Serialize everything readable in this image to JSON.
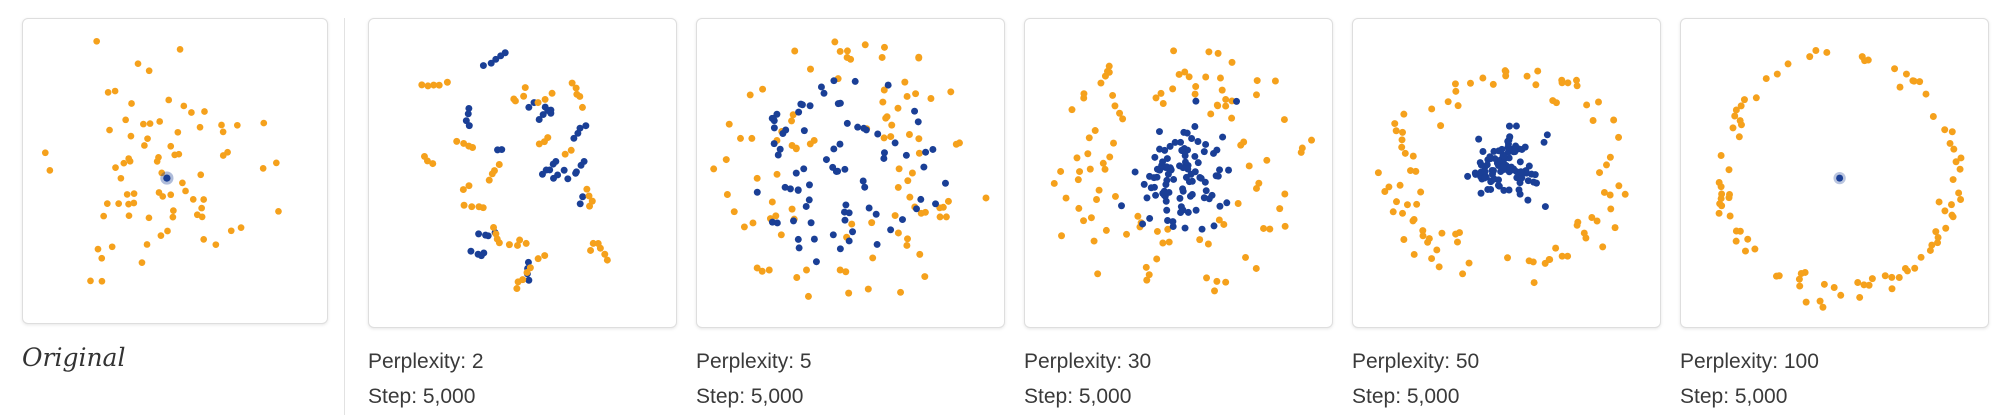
{
  "colors": {
    "outer": "#f5a11c",
    "inner": "#1a3f96",
    "card_border": "#dedede"
  },
  "original": {
    "label": "Original"
  },
  "panels": [
    {
      "perplexity": "Perplexity: 2",
      "step": "Step: 5,000"
    },
    {
      "perplexity": "Perplexity: 5",
      "step": "Step: 5,000"
    },
    {
      "perplexity": "Perplexity: 30",
      "step": "Step: 5,000"
    },
    {
      "perplexity": "Perplexity: 50",
      "step": "Step: 5,000"
    },
    {
      "perplexity": "Perplexity: 100",
      "step": "Step: 5,000"
    }
  ]
}
